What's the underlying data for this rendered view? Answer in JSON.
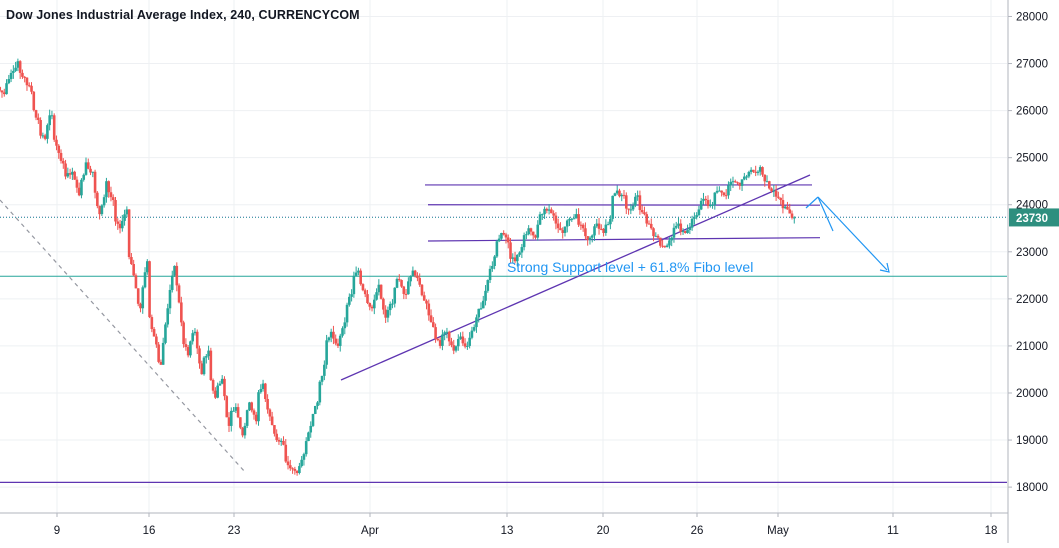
{
  "chart_data": {
    "type": "candlestick",
    "title": "Dow Jones Industrial Average Index, 240, CURRENCYCOM",
    "current_price_label": "23730",
    "y_ticks": [
      18000,
      19000,
      20000,
      21000,
      22000,
      23000,
      24000,
      25000,
      26000,
      27000,
      28000
    ],
    "y_tick_labels": [
      "18000",
      "19000",
      "20000",
      "21000",
      "22000",
      "23000",
      "24000",
      "25000",
      "26000",
      "27000",
      "28000"
    ],
    "ylim": [
      17450,
      28350
    ],
    "x_tick_labels": [
      "9",
      "16",
      "23",
      "Apr",
      "13",
      "20",
      "26",
      "May",
      "11",
      "18"
    ],
    "annotation_text": "Strong Support level + 61.8% Fibo level",
    "grid": true,
    "colors": {
      "up": "#26a69a",
      "down": "#ef5350",
      "trendline": "#5e35b1",
      "projection": "#2196f3",
      "support": "#26a69a",
      "axis_text": "#131722",
      "grid": "#eef0f3",
      "price_label_bg": "#2e8f7f"
    },
    "candles_close_path": [
      26350,
      26800,
      27050,
      26700,
      26400,
      25800,
      25400,
      25900,
      25100,
      24600,
      24700,
      24200,
      24900,
      24700,
      23800,
      24500,
      24100,
      23500,
      23900,
      22500,
      21800,
      22800,
      21200,
      20600,
      21800,
      22700,
      21500,
      20800,
      21300,
      20400,
      20900,
      19900,
      20300,
      19300,
      19700,
      19100,
      19800,
      19400,
      20200,
      19500,
      19000,
      18900,
      18400,
      18300,
      18700,
      19300,
      19800,
      20600,
      21300,
      21000,
      21500,
      22100,
      22600,
      22100,
      21800,
      22300,
      21600,
      21900,
      22400,
      22100,
      22600,
      22300,
      21900,
      21400,
      21000,
      21300,
      20900,
      21200,
      21000,
      21400,
      21800,
      22400,
      22900,
      23400,
      23200,
      22800,
      23100,
      23500,
      23300,
      23800,
      23900,
      23600,
      23400,
      23700,
      23800,
      23500,
      23300,
      23600,
      23400,
      23700,
      24300,
      24200,
      23900,
      24200,
      23800,
      23500,
      23300,
      23100,
      23300,
      23600,
      23400,
      23700,
      23900,
      24100,
      24000,
      24300,
      24200,
      24500,
      24400,
      24600,
      24700,
      24800,
      24500,
      24300,
      24100,
      23900,
      23730
    ]
  }
}
